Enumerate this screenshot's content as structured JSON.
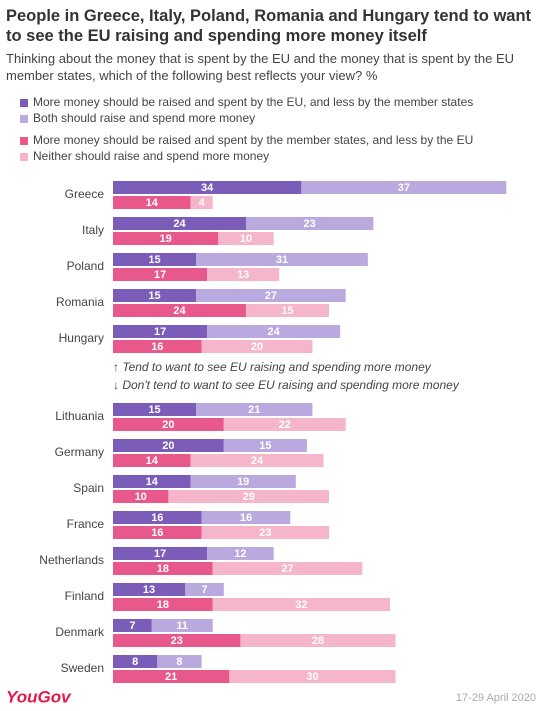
{
  "chart_data": {
    "type": "bar",
    "title": "People in Greece, Italy, Poland, Romania and Hungary tend to want to see the EU raising and spending more money itself",
    "subtitle": "Thinking about the money that is spent by the EU and the money that is spent by the EU member states, which of the following best reflects your view? %",
    "categories": [
      "Greece",
      "Italy",
      "Poland",
      "Romania",
      "Hungary",
      "Lithuania",
      "Germany",
      "Spain",
      "France",
      "Netherlands",
      "Finland",
      "Denmark",
      "Sweden"
    ],
    "series": [
      {
        "name": "More money should be raised and spent by the EU, and less by the member states",
        "color": "#7b5cb8",
        "values": [
          34,
          24,
          15,
          15,
          17,
          15,
          20,
          14,
          16,
          17,
          13,
          7,
          8
        ]
      },
      {
        "name": "Both should raise and spend more money",
        "color": "#b9a9de",
        "values": [
          37,
          23,
          31,
          27,
          24,
          21,
          15,
          19,
          16,
          12,
          7,
          11,
          8
        ]
      },
      {
        "name": "More money should be raised and spent by the member states, and less by the EU",
        "color": "#e8588a",
        "values": [
          14,
          19,
          17,
          24,
          16,
          20,
          14,
          10,
          16,
          18,
          18,
          23,
          21
        ]
      },
      {
        "name": "Neither should raise and spend more money",
        "color": "#f5b5cb",
        "values": [
          4,
          10,
          13,
          15,
          20,
          22,
          24,
          29,
          23,
          27,
          32,
          28,
          30
        ]
      }
    ],
    "annotations": [
      "↑ Tend to want to see EU raising and spending more money",
      "↓ Don't tend to want to see EU raising and spending more money"
    ],
    "source": "YouGov",
    "date": "17-29 April 2020"
  }
}
